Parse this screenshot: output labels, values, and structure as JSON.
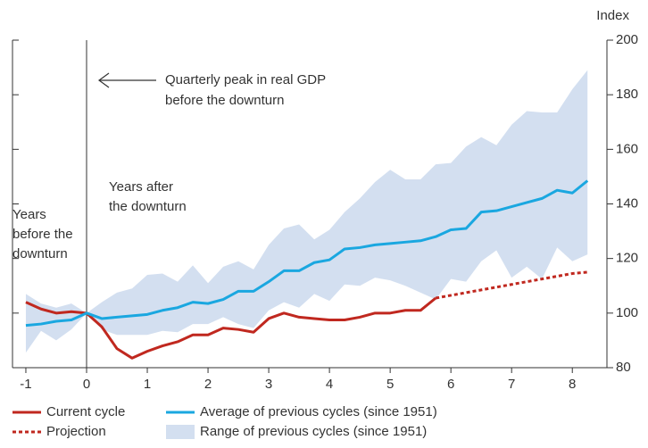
{
  "chart_data": {
    "type": "line",
    "y_axis_label": "Index",
    "x": [
      -1,
      -0.75,
      -0.5,
      -0.25,
      0,
      0.25,
      0.5,
      0.75,
      1,
      1.25,
      1.5,
      1.75,
      2,
      2.25,
      2.5,
      2.75,
      3,
      3.25,
      3.5,
      3.75,
      4,
      4.25,
      4.5,
      4.75,
      5,
      5.25,
      5.5,
      5.75,
      6,
      6.25,
      6.5,
      6.75,
      7,
      7.25,
      7.5,
      7.75,
      8,
      8.25
    ],
    "xlim": [
      -1.22,
      8.57
    ],
    "xticks": [
      -1,
      0,
      1,
      2,
      3,
      4,
      5,
      6,
      7,
      8
    ],
    "ylim": [
      80,
      200
    ],
    "yticks": [
      80,
      100,
      120,
      140,
      160,
      180,
      200
    ],
    "vline": 0,
    "annotations": [
      {
        "lines": [
          "Quarterly peak in real GDP",
          "before the downturn"
        ]
      },
      {
        "lines": [
          "Years after",
          "the downturn"
        ]
      },
      {
        "lines": [
          "Years",
          "before the",
          "downturn"
        ]
      }
    ],
    "series": [
      {
        "name": "Current cycle",
        "color": "#c0281f",
        "line_style": "solid",
        "values": [
          104,
          101.5,
          100,
          100.5,
          100,
          95,
          87,
          83.5,
          86,
          88,
          89.5,
          92,
          92,
          94.5,
          94,
          93,
          98,
          100,
          98.5,
          98,
          97.5,
          97.5,
          98.5,
          100,
          100,
          101,
          101,
          105.5,
          null,
          null,
          null,
          null,
          null,
          null,
          null,
          null,
          null,
          null
        ]
      },
      {
        "name": "Projection",
        "color": "#c0281f",
        "line_style": "dashed",
        "values": [
          null,
          null,
          null,
          null,
          null,
          null,
          null,
          null,
          null,
          null,
          null,
          null,
          null,
          null,
          null,
          null,
          null,
          null,
          null,
          null,
          null,
          null,
          null,
          null,
          null,
          null,
          null,
          105.5,
          106.5,
          107.5,
          108.5,
          109.5,
          110.5,
          111.5,
          112.5,
          113.5,
          114.5,
          115
        ]
      },
      {
        "name": "Average of previous cycles (since 1951)",
        "color": "#1aa7e0",
        "line_style": "solid",
        "values": [
          95.5,
          96,
          97,
          97.5,
          100,
          98,
          98.5,
          99,
          99.5,
          101,
          102,
          104,
          103.5,
          105,
          108,
          108,
          111.5,
          115.5,
          115.5,
          118.5,
          119.5,
          123.5,
          124,
          125,
          125.5,
          126,
          126.5,
          128,
          130.5,
          131,
          137,
          137.5,
          139,
          140.5,
          142,
          145,
          144,
          148.5
        ]
      },
      {
        "name": "Range of previous cycles (since 1951)",
        "color": "#d3dff0",
        "line_style": "band",
        "upper": [
          107,
          103.5,
          102,
          103.5,
          100,
          104,
          107.5,
          109,
          114,
          114.5,
          111.5,
          117.5,
          111,
          117,
          119,
          116,
          125,
          131,
          132.5,
          127,
          130.5,
          137,
          142,
          148,
          152.5,
          149,
          149,
          154.5,
          155,
          161,
          164.5,
          161.5,
          169,
          174,
          173.5,
          173.5,
          182,
          189
        ],
        "lower": [
          85.5,
          93.5,
          90,
          94,
          100,
          94,
          92,
          92,
          92,
          93.5,
          93,
          96,
          96,
          98.5,
          96,
          94.5,
          101,
          104,
          102,
          107,
          104.5,
          110.5,
          110,
          113,
          112,
          110,
          107.5,
          105,
          112.5,
          111.5,
          119,
          123,
          113,
          117,
          112.5,
          124,
          119,
          121.5
        ]
      }
    ]
  }
}
